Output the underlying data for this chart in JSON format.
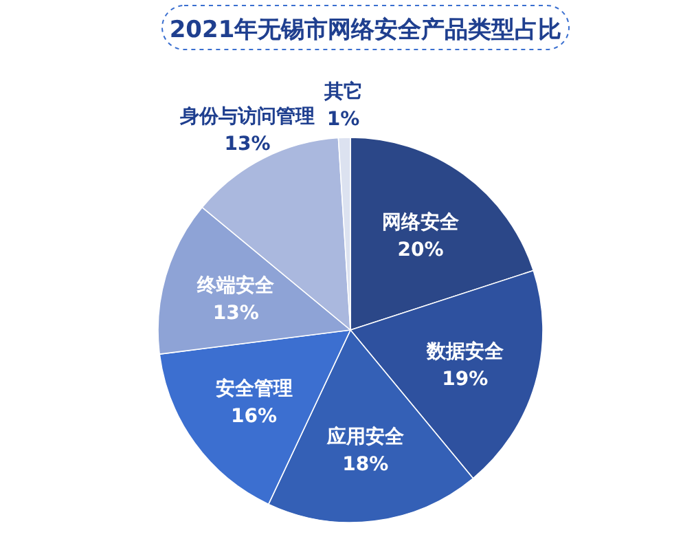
{
  "chart_data": {
    "type": "pie",
    "title": "2021年无锡市网络安全产品类型占比",
    "categories": [
      "网络安全",
      "数据安全",
      "应用安全",
      "安全管理",
      "终端安全",
      "身份与访问管理",
      "其它"
    ],
    "values": [
      20,
      19,
      18,
      16,
      13,
      13,
      1
    ],
    "colors": [
      "#2b4788",
      "#2e519f",
      "#3460b6",
      "#3c6fd0",
      "#8ea3d6",
      "#aab8de",
      "#dce2f0"
    ],
    "value_labels": [
      "20%",
      "19%",
      "18%",
      "16%",
      "13%",
      "13%",
      "1%"
    ]
  }
}
